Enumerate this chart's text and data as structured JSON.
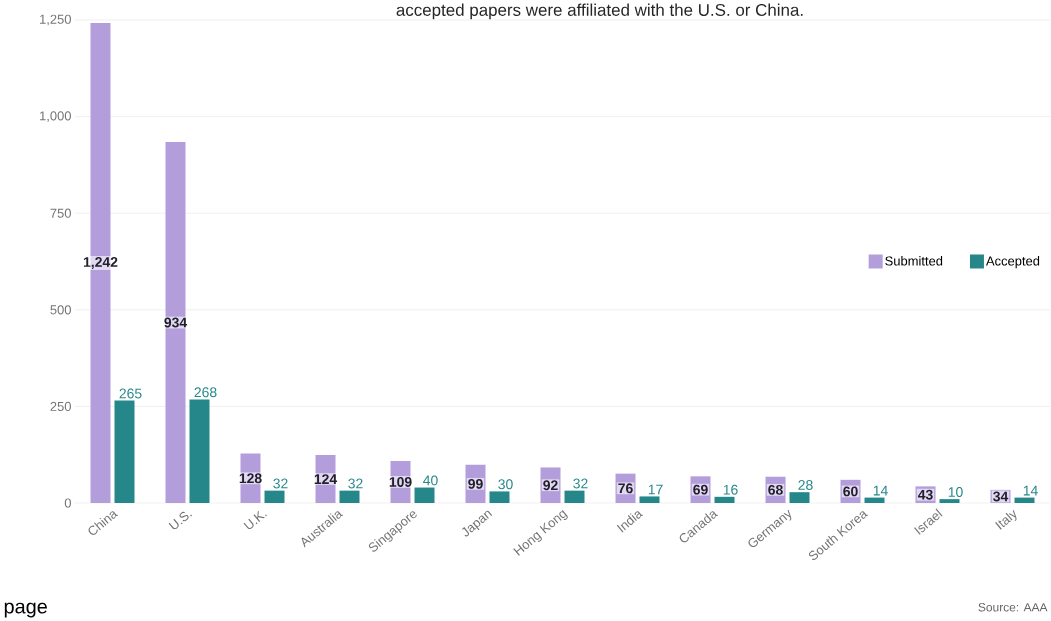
{
  "chart_data": {
    "type": "bar",
    "title": "accepted papers were affiliated with the U.S. or China.",
    "categories": [
      "China",
      "U.S.",
      "U.K.",
      "Australia",
      "Singapore",
      "Japan",
      "Hong Kong",
      "India",
      "Canada",
      "Germany",
      "South Korea",
      "Israel",
      "Italy"
    ],
    "series": [
      {
        "name": "Submitted",
        "color": "#b39ddb",
        "values": [
          1242,
          934,
          128,
          124,
          109,
          99,
          92,
          76,
          69,
          68,
          60,
          43,
          34
        ],
        "value_labels": [
          "1,242",
          "934",
          "128",
          "124",
          "109",
          "99",
          "92",
          "76",
          "69",
          "68",
          "60",
          "43",
          "34"
        ]
      },
      {
        "name": "Accepted",
        "color": "#26878a",
        "values": [
          265,
          268,
          32,
          32,
          40,
          30,
          32,
          17,
          16,
          28,
          14,
          10,
          14
        ],
        "value_labels": [
          "265",
          "268",
          "32",
          "32",
          "40",
          "30",
          "32",
          "17",
          "16",
          "28",
          "14",
          "10",
          "14"
        ]
      }
    ],
    "ylim": [
      0,
      1250
    ],
    "yticks": [
      0,
      250,
      500,
      750,
      {
        "value": 1000,
        "label": "1,000"
      },
      {
        "value": 1250,
        "label": "1,250"
      }
    ],
    "grid": "y",
    "legend": "right",
    "annotations": [
      "page",
      "Source: AAA"
    ]
  }
}
